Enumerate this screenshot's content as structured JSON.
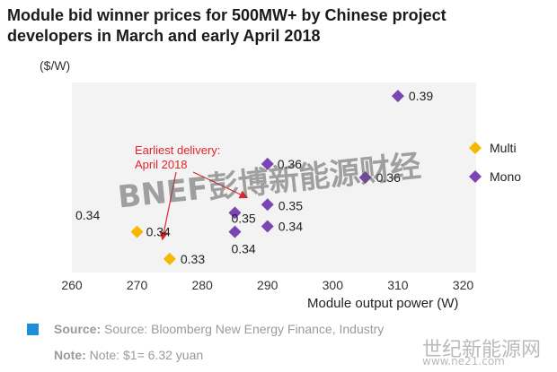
{
  "header": {
    "title": "Module bid winner prices for 500MW+ by Chinese project developers in March and early April 2018"
  },
  "chart_data": {
    "type": "scatter",
    "title": "Module bid winner prices for 500MW+ by Chinese project developers in March and early April 2018",
    "xlabel": "Module output power (W)",
    "ylabel": "($/W)",
    "xlim": [
      260,
      322
    ],
    "ylim": [
      0.325,
      0.395
    ],
    "x_ticks": [
      "260",
      "270",
      "280",
      "290",
      "300",
      "310",
      "320"
    ],
    "legend": {
      "placement": "right",
      "entries": [
        "Multi",
        "Mono"
      ]
    },
    "series": [
      {
        "name": "Multi",
        "color": "#f5b800",
        "marker": "diamond",
        "points": [
          {
            "x": 270,
            "y": 0.34,
            "label": "0.34"
          },
          {
            "x": 275,
            "y": 0.33,
            "label": "0.33"
          }
        ]
      },
      {
        "name": "Mono",
        "color": "#7b45b3",
        "marker": "diamond",
        "points": [
          {
            "x": 310,
            "y": 0.39,
            "label": "0.39"
          },
          {
            "x": 305,
            "y": 0.36,
            "label": "0.36"
          },
          {
            "x": 290,
            "y": 0.365,
            "label": "0.36"
          },
          {
            "x": 290,
            "y": 0.35,
            "label": "0.35"
          },
          {
            "x": 285,
            "y": 0.347,
            "label": "0.35"
          },
          {
            "x": 290,
            "y": 0.342,
            "label": "0.34"
          },
          {
            "x": 285,
            "y": 0.34,
            "label": "0.34"
          }
        ]
      }
    ],
    "extra_labels": [
      "0.34"
    ],
    "annotation": {
      "text_lines": [
        "Earliest delivery:",
        "April 2018"
      ],
      "color": "#e0262b"
    }
  },
  "footer": {
    "source_label": "Source:",
    "source_text": "Source: Bloomberg New Energy Finance, Industry",
    "note_label": "Note:",
    "note_text": "Note: $1= 6.32 yuan"
  },
  "watermark": {
    "main": "BNEF彭博新能源财经",
    "corner": "世纪新能源网",
    "corner_url": "www.ne21.com"
  }
}
